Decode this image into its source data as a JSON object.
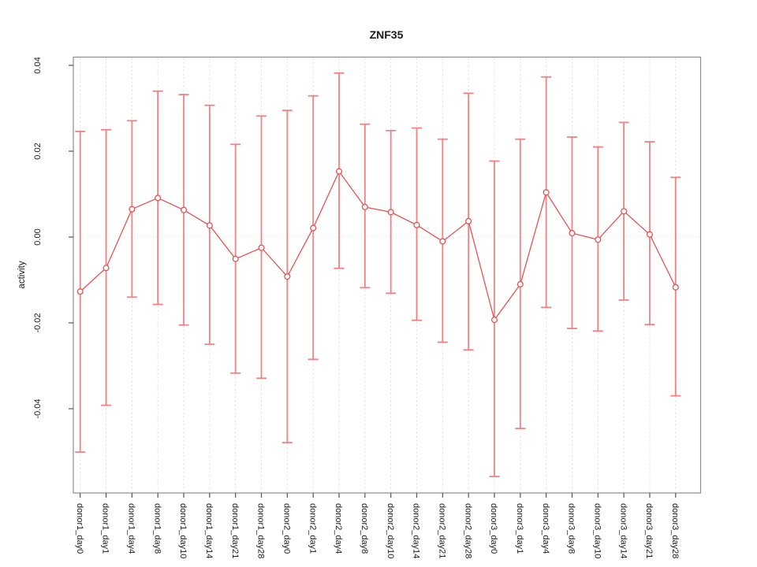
{
  "title": "ZNF35",
  "chart_data": {
    "type": "line",
    "title": "ZNF35",
    "xlabel": "",
    "ylabel": "activity",
    "legend_position": "none",
    "grid": {
      "vertical": "dashed-per-category",
      "zero_line": "dotted-horizontal"
    },
    "marker": "open-circle",
    "error_bars": true,
    "ylim": [
      -0.0595,
      0.0418
    ],
    "ytick_values": [
      0.04,
      0.02,
      0,
      -0.02,
      -0.04
    ],
    "ytick_labels": [
      "0.04",
      "0.02",
      "0.00",
      "-0.02",
      "-0.04"
    ],
    "categories": [
      "donor1_day0",
      "donor1_day1",
      "donor1_day4",
      "donor1_day8",
      "donor1_day10",
      "donor1_day14",
      "donor1_day21",
      "donor1_day28",
      "donor2_day0",
      "donor2_day1",
      "donor2_day4",
      "donor2_day8",
      "donor2_day10",
      "donor2_day14",
      "donor2_day21",
      "donor2_day28",
      "donor3_day0",
      "donor3_day1",
      "donor3_day4",
      "donor3_day8",
      "donor3_day10",
      "donor3_day14",
      "donor3_day21",
      "donor3_day28"
    ],
    "series": [
      {
        "name": "activity",
        "values": [
          -0.0127,
          -0.0072,
          0.0065,
          0.0091,
          0.0063,
          0.0027,
          -0.0051,
          -0.0025,
          -0.0092,
          0.0021,
          0.0153,
          0.007,
          0.0058,
          0.0028,
          -0.001,
          0.0037,
          -0.0193,
          -0.011,
          0.0104,
          0.0009,
          -0.0006,
          0.006,
          0.0006,
          -0.0117
        ],
        "upper": [
          0.0246,
          0.025,
          0.0271,
          0.034,
          0.0332,
          0.0307,
          0.0216,
          0.0282,
          0.0295,
          0.0329,
          0.0382,
          0.0263,
          0.0248,
          0.0254,
          0.0228,
          0.0335,
          0.0177,
          0.0228,
          0.0373,
          0.0233,
          0.021,
          0.0267,
          0.0222,
          0.0139
        ],
        "lower": [
          -0.0501,
          -0.0392,
          -0.014,
          -0.0157,
          -0.0205,
          -0.025,
          -0.0317,
          -0.0329,
          -0.0479,
          -0.0285,
          -0.0073,
          -0.0118,
          -0.0131,
          -0.0194,
          -0.0245,
          -0.0263,
          -0.0558,
          -0.0446,
          -0.0164,
          -0.0213,
          -0.0219,
          -0.0147,
          -0.0204,
          -0.037
        ]
      }
    ]
  },
  "colors": {
    "series_line": "#e85151",
    "marker": "#e85151",
    "error_bar": "#f28282",
    "gridline": "#dcdcdc",
    "zero_line": "#dedede",
    "plot_border": "#8c8c8c",
    "tick": "#555555",
    "text": "#1a1a1a",
    "background": "#ffffff"
  }
}
